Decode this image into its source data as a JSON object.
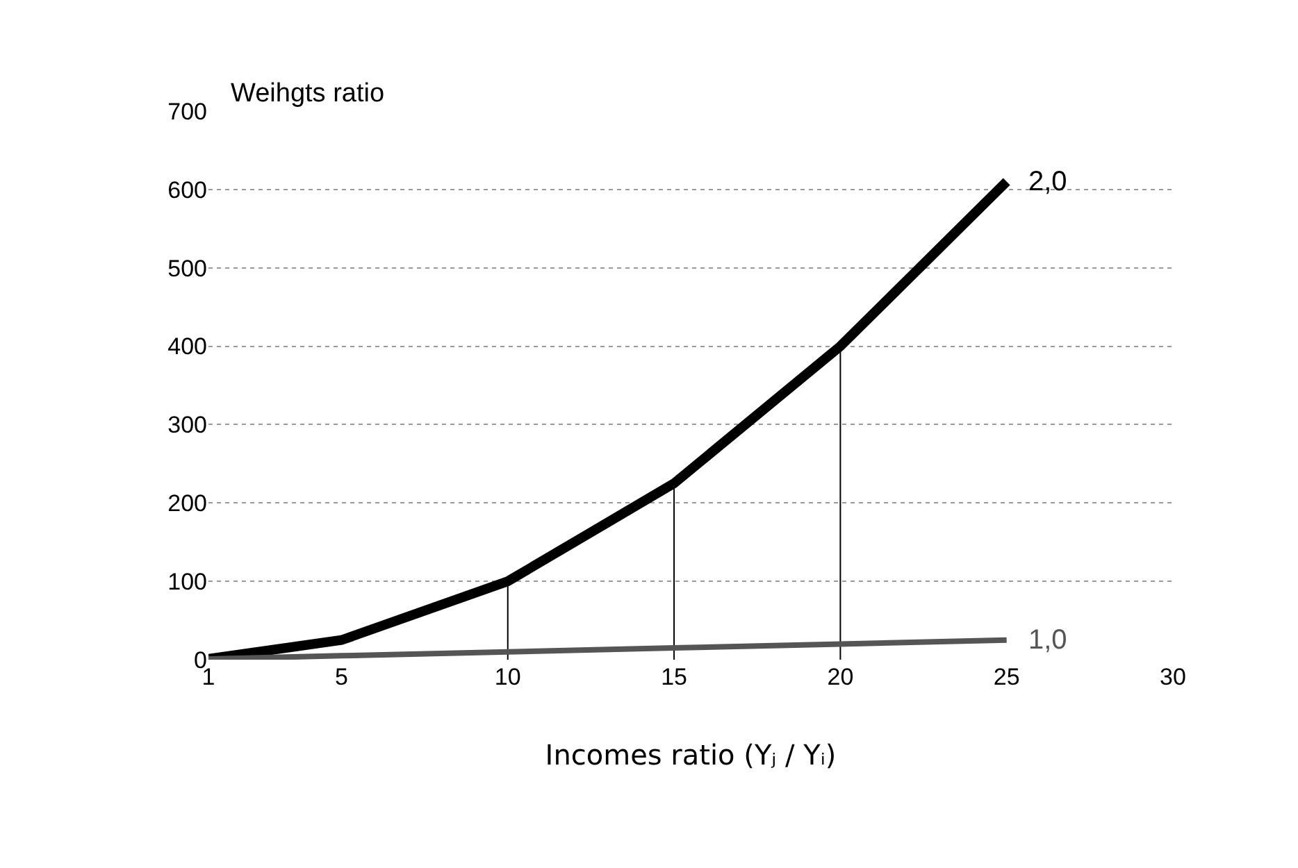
{
  "chart_data": {
    "type": "line",
    "xlabel": "Incomes ratio (Yⱼ / Yᵢ)",
    "ylabel": "Weihgts ratio",
    "x": [
      1,
      5,
      10,
      15,
      20,
      25
    ],
    "series": [
      {
        "name": "2,0",
        "color": "#000000",
        "values": [
          1,
          25,
          100,
          225,
          400,
          610
        ],
        "errors": [
          null,
          null,
          [
            0,
            100
          ],
          [
            0,
            225
          ],
          [
            0,
            400
          ],
          null
        ]
      },
      {
        "name": "1,0",
        "color": "#555555",
        "values": [
          1,
          5,
          10,
          15,
          20,
          25
        ]
      }
    ],
    "xlim": [
      1,
      30
    ],
    "xticks": [
      1,
      5,
      10,
      15,
      20,
      25,
      30
    ],
    "ylim": [
      0,
      700
    ],
    "yticks": [
      0,
      100,
      200,
      300,
      400,
      500,
      600,
      700
    ],
    "grid": "y",
    "legend": false,
    "marker": "none",
    "line_style": "solid"
  }
}
